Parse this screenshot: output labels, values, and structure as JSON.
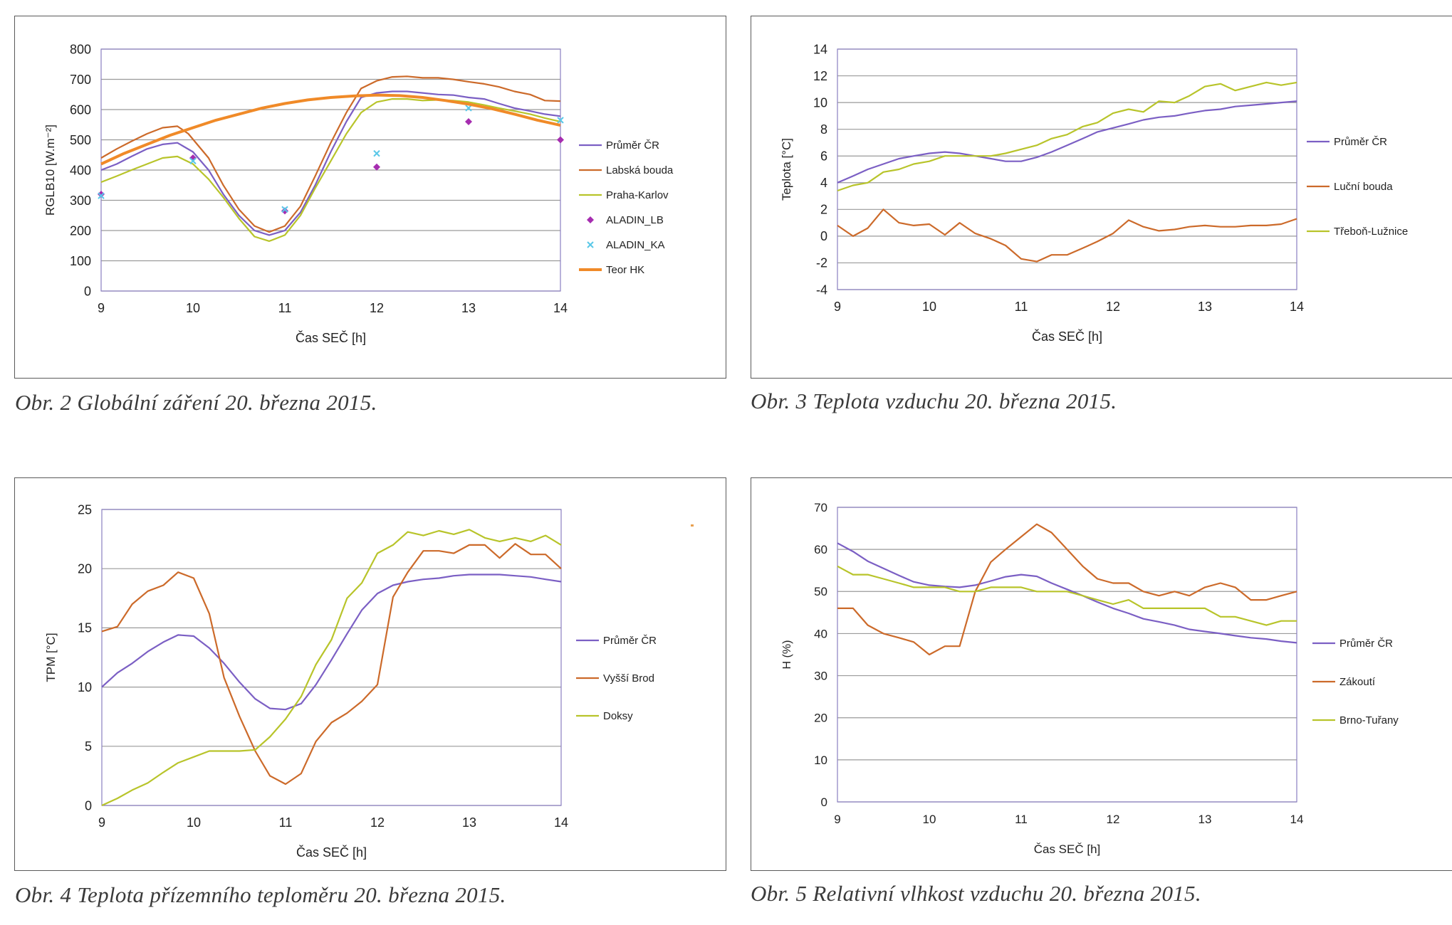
{
  "colors": {
    "purple": "#7b5fc4",
    "brown": "#cc6a2a",
    "olive": "#b8c42a",
    "magenta": "#a62db0",
    "cyan": "#5ac8e8",
    "orange": "#f08a28",
    "grid": "#9a9a9a",
    "frame": "#5a5a5a"
  },
  "captions": {
    "obr2": "Obr. 2 Globální záření 20. března 2015.",
    "obr3": "Obr. 3 Teplota vzduchu 20. března 2015.",
    "obr4": "Obr. 4 Teplota přízemního teploměru 20. března 2015.",
    "obr5": "Obr. 5 Relativní vlhkost vzduchu 20. března 2015."
  },
  "chart_data": [
    {
      "type": "line",
      "ylabel": "RGLB10 [W.m⁻²]",
      "xlabel": "Čas SEČ [h]",
      "xlim": [
        9,
        14
      ],
      "ylim": [
        0,
        800
      ],
      "xticks": [
        "9",
        "10",
        "11",
        "12",
        "13",
        "14"
      ],
      "yticks": [
        "0",
        "100",
        "200",
        "300",
        "400",
        "500",
        "600",
        "700",
        "800"
      ],
      "grid": true,
      "legend": "right",
      "series": [
        {
          "name": "Průměr ČR",
          "kind": "line",
          "color": "#7b5fc4",
          "x": [
            9,
            9.17,
            9.33,
            9.5,
            9.67,
            9.83,
            10,
            10.17,
            10.33,
            10.5,
            10.67,
            10.83,
            11,
            11.17,
            11.33,
            11.5,
            11.67,
            11.83,
            12,
            12.17,
            12.33,
            12.5,
            12.67,
            12.83,
            13,
            13.17,
            13.33,
            13.5,
            13.67,
            13.83,
            14
          ],
          "y": [
            400,
            420,
            445,
            470,
            485,
            490,
            460,
            400,
            320,
            250,
            200,
            185,
            200,
            260,
            350,
            460,
            560,
            640,
            655,
            660,
            660,
            655,
            650,
            648,
            640,
            635,
            620,
            605,
            595,
            585,
            578
          ]
        },
        {
          "name": "Labská bouda",
          "kind": "line",
          "color": "#cc6a2a",
          "x": [
            9,
            9.17,
            9.33,
            9.5,
            9.67,
            9.83,
            9.95,
            10.17,
            10.33,
            10.5,
            10.67,
            10.83,
            11,
            11.17,
            11.33,
            11.5,
            11.67,
            11.83,
            12,
            12.17,
            12.33,
            12.5,
            12.67,
            12.83,
            13,
            13.17,
            13.33,
            13.5,
            13.67,
            13.83,
            14
          ],
          "y": [
            440,
            470,
            495,
            520,
            540,
            545,
            520,
            440,
            350,
            270,
            215,
            195,
            215,
            280,
            380,
            490,
            590,
            670,
            695,
            708,
            710,
            705,
            705,
            700,
            692,
            685,
            675,
            660,
            650,
            630,
            628
          ]
        },
        {
          "name": "Praha-Karlov",
          "kind": "line",
          "color": "#b8c42a",
          "x": [
            9,
            9.17,
            9.33,
            9.5,
            9.67,
            9.83,
            10,
            10.17,
            10.33,
            10.5,
            10.67,
            10.83,
            11,
            11.17,
            11.33,
            11.5,
            11.67,
            11.83,
            12,
            12.17,
            12.33,
            12.5,
            12.67,
            12.83,
            13,
            13.17,
            13.33,
            13.5,
            13.67,
            13.83,
            14
          ],
          "y": [
            360,
            380,
            400,
            420,
            440,
            445,
            420,
            370,
            310,
            240,
            180,
            165,
            185,
            250,
            340,
            430,
            520,
            590,
            625,
            635,
            635,
            630,
            632,
            630,
            625,
            615,
            605,
            595,
            585,
            572,
            560
          ]
        },
        {
          "name": "ALADIN_LB",
          "kind": "marker-diamond",
          "color": "#a62db0",
          "x": [
            9,
            10,
            11,
            12,
            13,
            14
          ],
          "y": [
            320,
            440,
            265,
            410,
            560,
            500
          ]
        },
        {
          "name": "ALADIN_KA",
          "kind": "marker-x",
          "color": "#5ac8e8",
          "x": [
            9,
            10,
            11,
            12,
            13,
            14
          ],
          "y": [
            315,
            430,
            270,
            455,
            605,
            565
          ]
        },
        {
          "name": "Teor HK",
          "kind": "thick-line",
          "color": "#f08a28",
          "x": [
            9,
            9.25,
            9.5,
            9.75,
            10,
            10.25,
            10.5,
            10.75,
            11,
            11.25,
            11.5,
            11.75,
            12,
            12.25,
            12.5,
            12.75,
            13,
            13.25,
            13.5,
            13.75,
            14
          ],
          "y": [
            420,
            455,
            485,
            515,
            540,
            565,
            585,
            605,
            620,
            632,
            640,
            645,
            648,
            646,
            640,
            630,
            618,
            603,
            585,
            565,
            548
          ]
        }
      ]
    },
    {
      "type": "line",
      "ylabel": "Teplota [°C]",
      "xlabel": "Čas SEČ [h]",
      "xlim": [
        9,
        14
      ],
      "ylim": [
        -4,
        14
      ],
      "xticks": [
        "9",
        "10",
        "11",
        "12",
        "13",
        "14"
      ],
      "yticks": [
        "-4",
        "-2",
        "0",
        "2",
        "4",
        "6",
        "8",
        "10",
        "12",
        "14"
      ],
      "grid": true,
      "legend": "right",
      "series": [
        {
          "name": "Průměr ČR",
          "kind": "line",
          "color": "#7b5fc4",
          "x": [
            9,
            9.17,
            9.33,
            9.5,
            9.67,
            9.83,
            10,
            10.17,
            10.33,
            10.5,
            10.67,
            10.83,
            11,
            11.17,
            11.33,
            11.5,
            11.67,
            11.83,
            12,
            12.17,
            12.33,
            12.5,
            12.67,
            12.83,
            13,
            13.17,
            13.33,
            13.5,
            13.67,
            13.83,
            14
          ],
          "y": [
            4.0,
            4.5,
            5.0,
            5.4,
            5.8,
            6.0,
            6.2,
            6.3,
            6.2,
            6.0,
            5.8,
            5.6,
            5.6,
            5.9,
            6.3,
            6.8,
            7.3,
            7.8,
            8.1,
            8.4,
            8.7,
            8.9,
            9.0,
            9.2,
            9.4,
            9.5,
            9.7,
            9.8,
            9.9,
            10.0,
            10.1
          ]
        },
        {
          "name": "Luční bouda",
          "kind": "line",
          "color": "#cc6a2a",
          "x": [
            9,
            9.17,
            9.33,
            9.5,
            9.67,
            9.83,
            10,
            10.17,
            10.33,
            10.5,
            10.67,
            10.83,
            11,
            11.17,
            11.33,
            11.5,
            11.67,
            11.83,
            12,
            12.17,
            12.33,
            12.5,
            12.67,
            12.83,
            13,
            13.17,
            13.33,
            13.5,
            13.67,
            13.83,
            14
          ],
          "y": [
            0.8,
            0.0,
            0.6,
            2.0,
            1.0,
            0.8,
            0.9,
            0.1,
            1.0,
            0.2,
            -0.2,
            -0.7,
            -1.7,
            -1.9,
            -1.4,
            -1.4,
            -0.9,
            -0.4,
            0.2,
            1.2,
            0.7,
            0.4,
            0.5,
            0.7,
            0.8,
            0.7,
            0.7,
            0.8,
            0.8,
            0.9,
            1.3
          ]
        },
        {
          "name": "Třeboň-Lužnice",
          "kind": "line",
          "color": "#b8c42a",
          "x": [
            9,
            9.17,
            9.33,
            9.5,
            9.67,
            9.83,
            10,
            10.17,
            10.33,
            10.5,
            10.67,
            10.83,
            11,
            11.17,
            11.33,
            11.5,
            11.67,
            11.83,
            12,
            12.17,
            12.33,
            12.5,
            12.67,
            12.83,
            13,
            13.17,
            13.33,
            13.5,
            13.67,
            13.83,
            14
          ],
          "y": [
            3.4,
            3.8,
            4.0,
            4.8,
            5.0,
            5.4,
            5.6,
            6.0,
            6.0,
            6.0,
            6.0,
            6.2,
            6.5,
            6.8,
            7.3,
            7.6,
            8.2,
            8.5,
            9.2,
            9.5,
            9.3,
            10.1,
            10.0,
            10.5,
            11.2,
            11.4,
            10.9,
            11.2,
            11.5,
            11.3,
            11.5
          ]
        }
      ]
    },
    {
      "type": "line",
      "ylabel": "TPM [°C]",
      "xlabel": "Čas SEČ [h]",
      "xlim": [
        9,
        14
      ],
      "ylim": [
        0,
        25
      ],
      "xticks": [
        "9",
        "10",
        "11",
        "12",
        "13",
        "14"
      ],
      "yticks": [
        "0",
        "5",
        "10",
        "15",
        "20",
        "25"
      ],
      "grid": true,
      "legend": "right",
      "series": [
        {
          "name": "Průměr ČR",
          "kind": "line",
          "color": "#7b5fc4",
          "x": [
            9,
            9.17,
            9.33,
            9.5,
            9.67,
            9.83,
            10,
            10.17,
            10.33,
            10.5,
            10.67,
            10.83,
            11,
            11.17,
            11.33,
            11.5,
            11.67,
            11.83,
            12,
            12.17,
            12.33,
            12.5,
            12.67,
            12.83,
            13,
            13.17,
            13.33,
            13.5,
            13.67,
            13.83,
            14
          ],
          "y": [
            10.0,
            11.2,
            12.0,
            13.0,
            13.8,
            14.4,
            14.3,
            13.3,
            12.0,
            10.4,
            9.0,
            8.2,
            8.1,
            8.6,
            10.2,
            12.3,
            14.5,
            16.5,
            17.9,
            18.6,
            18.9,
            19.1,
            19.2,
            19.4,
            19.5,
            19.5,
            19.5,
            19.4,
            19.3,
            19.1,
            18.9
          ]
        },
        {
          "name": "Vyšší Brod",
          "kind": "line",
          "color": "#cc6a2a",
          "x": [
            9,
            9.17,
            9.33,
            9.5,
            9.67,
            9.83,
            10,
            10.17,
            10.33,
            10.5,
            10.67,
            10.83,
            11,
            11.17,
            11.33,
            11.5,
            11.67,
            11.83,
            12,
            12.17,
            12.33,
            12.5,
            12.67,
            12.83,
            13,
            13.17,
            13.33,
            13.5,
            13.67,
            13.83,
            14
          ],
          "y": [
            14.7,
            15.1,
            17.0,
            18.1,
            18.6,
            19.7,
            19.2,
            16.2,
            10.8,
            7.5,
            4.6,
            2.5,
            1.8,
            2.7,
            5.4,
            7.0,
            7.8,
            8.8,
            10.2,
            17.6,
            19.7,
            21.5,
            21.5,
            21.3,
            22.0,
            22.0,
            20.9,
            22.1,
            21.2,
            21.2,
            20.0
          ]
        },
        {
          "name": "Doksy",
          "kind": "line",
          "color": "#b8c42a",
          "x": [
            9,
            9.17,
            9.33,
            9.5,
            9.67,
            9.83,
            10,
            10.17,
            10.33,
            10.5,
            10.67,
            10.83,
            11,
            11.17,
            11.33,
            11.5,
            11.67,
            11.83,
            12,
            12.17,
            12.33,
            12.5,
            12.67,
            12.83,
            13,
            13.17,
            13.33,
            13.5,
            13.67,
            13.83,
            14
          ],
          "y": [
            0.0,
            0.6,
            1.3,
            1.9,
            2.8,
            3.6,
            4.1,
            4.6,
            4.6,
            4.6,
            4.7,
            5.8,
            7.3,
            9.2,
            11.9,
            14.0,
            17.5,
            18.8,
            21.3,
            22.0,
            23.1,
            22.8,
            23.2,
            22.9,
            23.3,
            22.6,
            22.3,
            22.6,
            22.3,
            22.8,
            22.0
          ]
        }
      ]
    },
    {
      "type": "line",
      "ylabel": "H (%)",
      "xlabel": "Čas SEČ [h]",
      "xlim": [
        9,
        14
      ],
      "ylim": [
        0,
        70
      ],
      "xticks": [
        "9",
        "10",
        "11",
        "12",
        "13",
        "14"
      ],
      "yticks": [
        "0",
        "10",
        "20",
        "30",
        "40",
        "50",
        "60",
        "70"
      ],
      "grid": true,
      "legend": "right",
      "series": [
        {
          "name": "Průměr ČR",
          "kind": "line",
          "color": "#7b5fc4",
          "x": [
            9,
            9.17,
            9.33,
            9.5,
            9.67,
            9.83,
            10,
            10.17,
            10.33,
            10.5,
            10.67,
            10.83,
            11,
            11.17,
            11.33,
            11.5,
            11.67,
            11.83,
            12,
            12.17,
            12.33,
            12.5,
            12.67,
            12.83,
            13,
            13.17,
            13.33,
            13.5,
            13.67,
            13.83,
            14
          ],
          "y": [
            61.5,
            59.5,
            57.2,
            55.5,
            53.8,
            52.3,
            51.5,
            51.2,
            51.0,
            51.5,
            52.5,
            53.5,
            54.0,
            53.6,
            52.0,
            50.5,
            49.0,
            47.5,
            46.0,
            44.8,
            43.5,
            42.8,
            42.0,
            41.0,
            40.5,
            40.0,
            39.5,
            39.0,
            38.7,
            38.2,
            37.8
          ]
        },
        {
          "name": "Zákoutí",
          "kind": "line",
          "color": "#cc6a2a",
          "x": [
            9,
            9.17,
            9.33,
            9.5,
            9.67,
            9.83,
            10,
            10.17,
            10.33,
            10.5,
            10.67,
            10.83,
            11,
            11.17,
            11.33,
            11.5,
            11.67,
            11.83,
            12,
            12.17,
            12.33,
            12.5,
            12.67,
            12.83,
            13,
            13.17,
            13.33,
            13.5,
            13.67,
            13.83,
            14
          ],
          "y": [
            46.0,
            46.0,
            42.0,
            40.0,
            39.0,
            38.0,
            35.0,
            37.0,
            37.0,
            50.0,
            57.0,
            60.0,
            63.0,
            66.0,
            64.0,
            60.0,
            56.0,
            53.0,
            52.0,
            52.0,
            50.0,
            49.0,
            50.0,
            49.0,
            51.0,
            52.0,
            51.0,
            48.0,
            48.0,
            49.0,
            50.0
          ]
        },
        {
          "name": "Brno-Tuřany",
          "kind": "line",
          "color": "#b8c42a",
          "x": [
            9,
            9.17,
            9.33,
            9.5,
            9.67,
            9.83,
            10,
            10.17,
            10.33,
            10.5,
            10.67,
            10.83,
            11,
            11.17,
            11.33,
            11.5,
            11.67,
            11.83,
            12,
            12.17,
            12.33,
            12.5,
            12.67,
            12.83,
            13,
            13.17,
            13.33,
            13.5,
            13.67,
            13.83,
            14
          ],
          "y": [
            56.0,
            54.0,
            54.0,
            53.0,
            52.0,
            51.0,
            51.0,
            51.0,
            50.0,
            50.0,
            51.0,
            51.0,
            51.0,
            50.0,
            50.0,
            50.0,
            49.0,
            48.0,
            47.0,
            48.0,
            46.0,
            46.0,
            46.0,
            46.0,
            46.0,
            44.0,
            44.0,
            43.0,
            42.0,
            43.0,
            43.0
          ]
        }
      ]
    }
  ]
}
